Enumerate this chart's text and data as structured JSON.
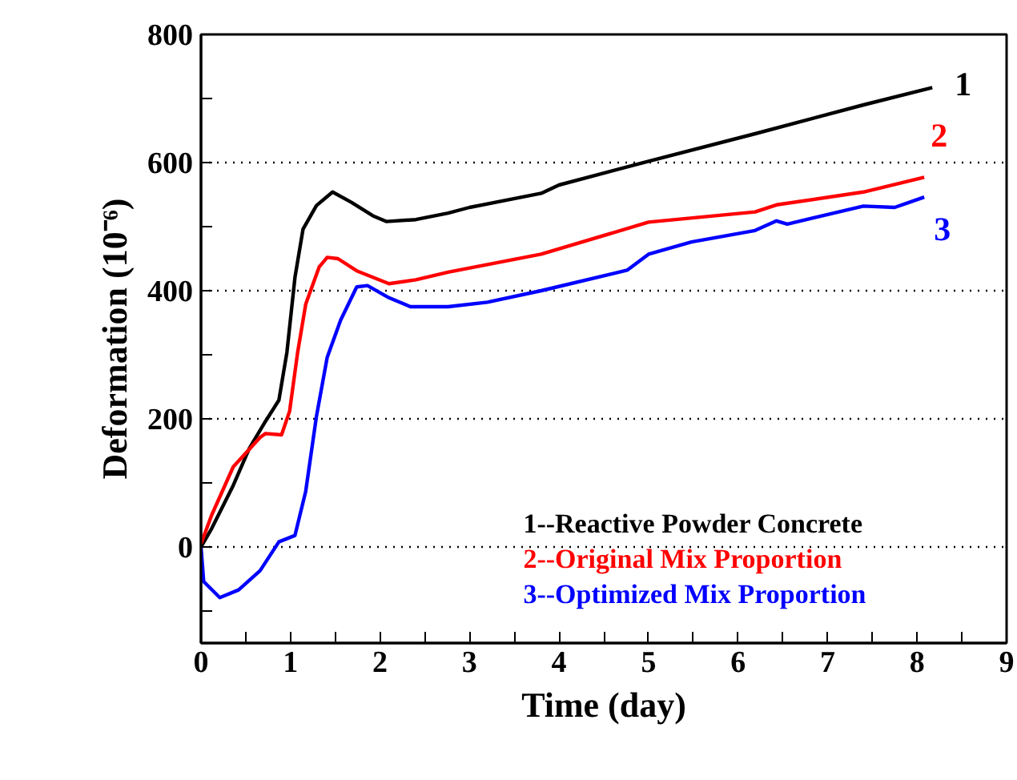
{
  "chart_data": {
    "type": "line",
    "xlabel": "Time (day)",
    "ylabel": "Deformation (10⁻⁶)",
    "xlim": [
      0,
      9
    ],
    "ylim": [
      -150,
      800
    ],
    "xticks": [
      0,
      {
        "value": 0.5,
        "label": null
      },
      1,
      {
        "value": 1.5,
        "label": null
      },
      2,
      {
        "value": 2.5,
        "label": null
      },
      3,
      {
        "value": 3.5,
        "label": null
      },
      4,
      {
        "value": 4.5,
        "label": null
      },
      5,
      {
        "value": 5.5,
        "label": null
      },
      6,
      {
        "value": 6.5,
        "label": null
      },
      7,
      {
        "value": 7.5,
        "label": null
      },
      8,
      {
        "value": 8.5,
        "label": null
      },
      9
    ],
    "yticks": [
      {
        "value": -100,
        "label": null
      },
      0,
      {
        "value": 100,
        "label": null
      },
      200,
      {
        "value": 300,
        "label": null
      },
      400,
      {
        "value": 500,
        "label": null
      },
      600,
      {
        "value": 700,
        "label": null
      },
      800
    ],
    "grid": "y",
    "legend": "bottom right",
    "line_style": "solid",
    "series": [
      {
        "name": "1--Reactive Powder Concrete",
        "color": "#000000",
        "x": [
          0,
          0.12,
          0.36,
          0.54,
          0.72,
          0.87,
          0.96,
          1.05,
          1.14,
          1.29,
          1.47,
          1.68,
          1.92,
          2.07,
          2.4,
          2.76,
          3.0,
          3.8,
          4.0,
          5.0,
          6.19,
          7.4,
          8.17
        ],
        "values": [
          0,
          29,
          96,
          154,
          196,
          229,
          304,
          421,
          496,
          533,
          554,
          538,
          517,
          508,
          511,
          521,
          530,
          552,
          565,
          602,
          645,
          690,
          717
        ]
      },
      {
        "name": "2--Original Mix Proportion",
        "color": "#ff0000",
        "x": [
          0,
          0.12,
          0.36,
          0.66,
          0.72,
          0.9,
          0.99,
          1.08,
          1.17,
          1.32,
          1.41,
          1.53,
          1.74,
          2.1,
          2.4,
          2.76,
          3.8,
          5.0,
          6.19,
          6.43,
          7.4,
          8.08
        ],
        "values": [
          5,
          50,
          125,
          171,
          177,
          175,
          212,
          304,
          379,
          437,
          452,
          450,
          431,
          411,
          417,
          429,
          457,
          507,
          523,
          534,
          554,
          577
        ]
      },
      {
        "name": "3--Optimized Mix Proportion",
        "color": "#0000ff",
        "x": [
          0,
          0.03,
          0.21,
          0.42,
          0.66,
          0.87,
          1.05,
          1.17,
          1.29,
          1.41,
          1.56,
          1.74,
          1.86,
          2.1,
          2.34,
          2.76,
          3.2,
          3.8,
          4.76,
          5.0,
          5.48,
          6.19,
          6.43,
          6.55,
          7.4,
          7.75,
          8.08
        ],
        "values": [
          0,
          -54,
          -79,
          -67,
          -37,
          8,
          18,
          87,
          204,
          296,
          354,
          406,
          408,
          389,
          375,
          375,
          382,
          400,
          432,
          457,
          476,
          494,
          509,
          504,
          532,
          530,
          546
        ]
      }
    ],
    "annotations": [
      "1",
      "2",
      "3"
    ]
  }
}
